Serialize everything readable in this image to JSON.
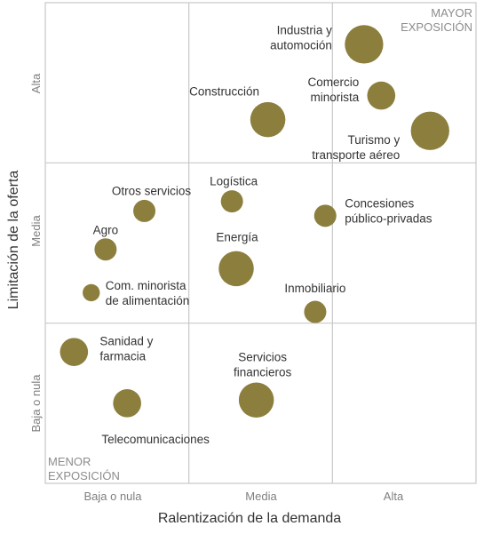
{
  "chart_data": {
    "type": "scatter",
    "xlabel": "Ralentización de la demanda",
    "ylabel": "Limitación de la oferta",
    "x_ticks": [
      "Baja o nula",
      "Media",
      "Alta"
    ],
    "y_ticks": [
      "Baja o nula",
      "Media",
      "Alta"
    ],
    "xlim": [
      0,
      3
    ],
    "ylim": [
      0,
      3
    ],
    "grid": true,
    "corner_top_right": [
      "MAYOR",
      "EXPOSICIÓN"
    ],
    "corner_bottom_left": [
      "MENOR",
      "EXPOSICIÓN"
    ],
    "bubble_color": "#8c7f3e",
    "points": [
      {
        "label": [
          "Industria y",
          "automoción"
        ],
        "x": 2.22,
        "y": 2.74,
        "size": 3
      },
      {
        "label": [
          "Comercio",
          "minorista"
        ],
        "x": 2.34,
        "y": 2.42,
        "size": 1.6
      },
      {
        "label": [
          "Turismo y",
          "transporte aéreo"
        ],
        "x": 2.68,
        "y": 2.2,
        "size": 3
      },
      {
        "label": [
          "Construcción"
        ],
        "x": 1.55,
        "y": 2.27,
        "size": 2.5
      },
      {
        "label": [
          "Otros servicios"
        ],
        "x": 0.69,
        "y": 1.7,
        "size": 1
      },
      {
        "label": [
          "Logística"
        ],
        "x": 1.3,
        "y": 1.76,
        "size": 1
      },
      {
        "label": [
          "Concesiones",
          "público-privadas"
        ],
        "x": 1.95,
        "y": 1.67,
        "size": 1
      },
      {
        "label": [
          "Agro"
        ],
        "x": 0.42,
        "y": 1.46,
        "size": 1
      },
      {
        "label": [
          "Energía"
        ],
        "x": 1.33,
        "y": 1.34,
        "size": 2.5
      },
      {
        "label": [
          "Com. minorista",
          "de alimentación"
        ],
        "x": 0.32,
        "y": 1.19,
        "size": 0.6
      },
      {
        "label": [
          "Inmobiliario"
        ],
        "x": 1.88,
        "y": 1.07,
        "size": 1
      },
      {
        "label": [
          "Sanidad y",
          "farmacia"
        ],
        "x": 0.2,
        "y": 0.82,
        "size": 1.6
      },
      {
        "label": [
          "Telecomunicaciones"
        ],
        "x": 0.57,
        "y": 0.5,
        "size": 1.6
      },
      {
        "label": [
          "Servicios",
          "financieros"
        ],
        "x": 1.47,
        "y": 0.52,
        "size": 2.5
      }
    ]
  }
}
